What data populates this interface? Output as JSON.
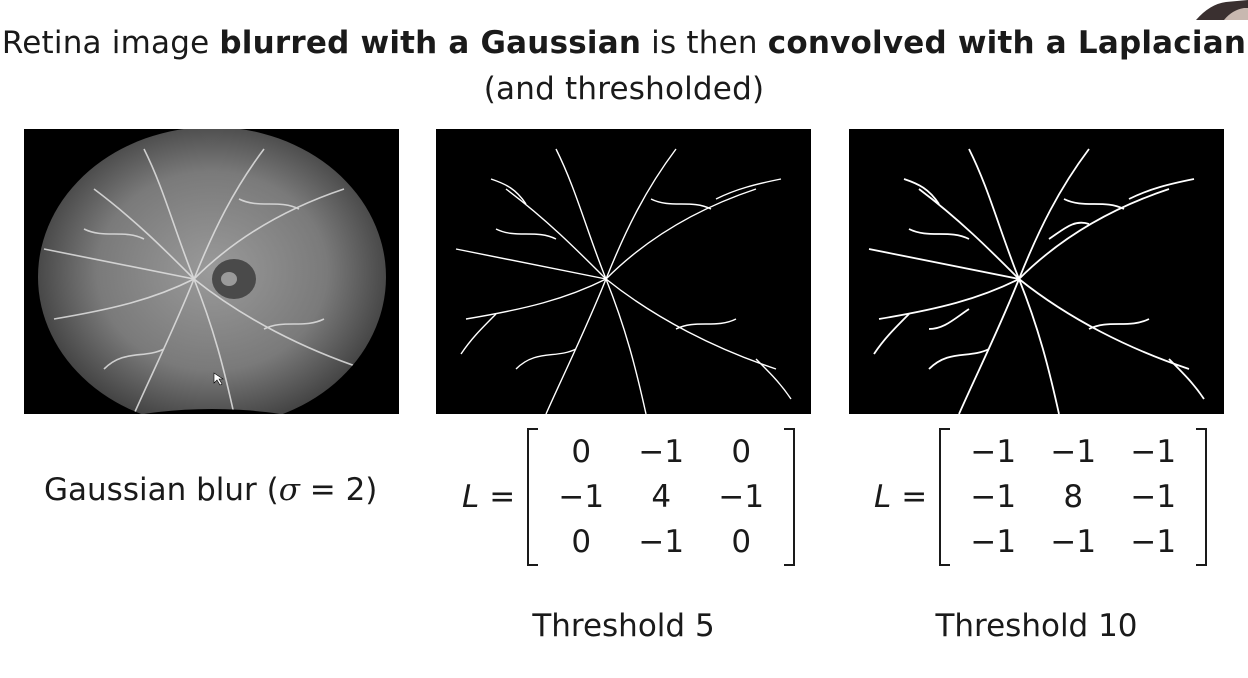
{
  "title": {
    "part1": "Retina image ",
    "bold1": "blurred with a Gaussian",
    "part2": " is then ",
    "bold2": "convolved with a Laplacian",
    "line2": "(and thresholded)"
  },
  "panels": [
    {
      "caption_prefix": "Gaussian blur (",
      "sigma": "σ",
      "caption_suffix": " = 2)"
    },
    {
      "lhs": "L",
      "eq": "=",
      "matrix": [
        "0",
        "−1",
        "0",
        "−1",
        "4",
        "−1",
        "0",
        "−1",
        "0"
      ],
      "threshold": "Threshold 5"
    },
    {
      "lhs": "L",
      "eq": "=",
      "matrix": [
        "−1",
        "−1",
        "−1",
        "−1",
        "8",
        "−1",
        "−1",
        "−1",
        "−1"
      ],
      "threshold": "Threshold 10"
    }
  ]
}
